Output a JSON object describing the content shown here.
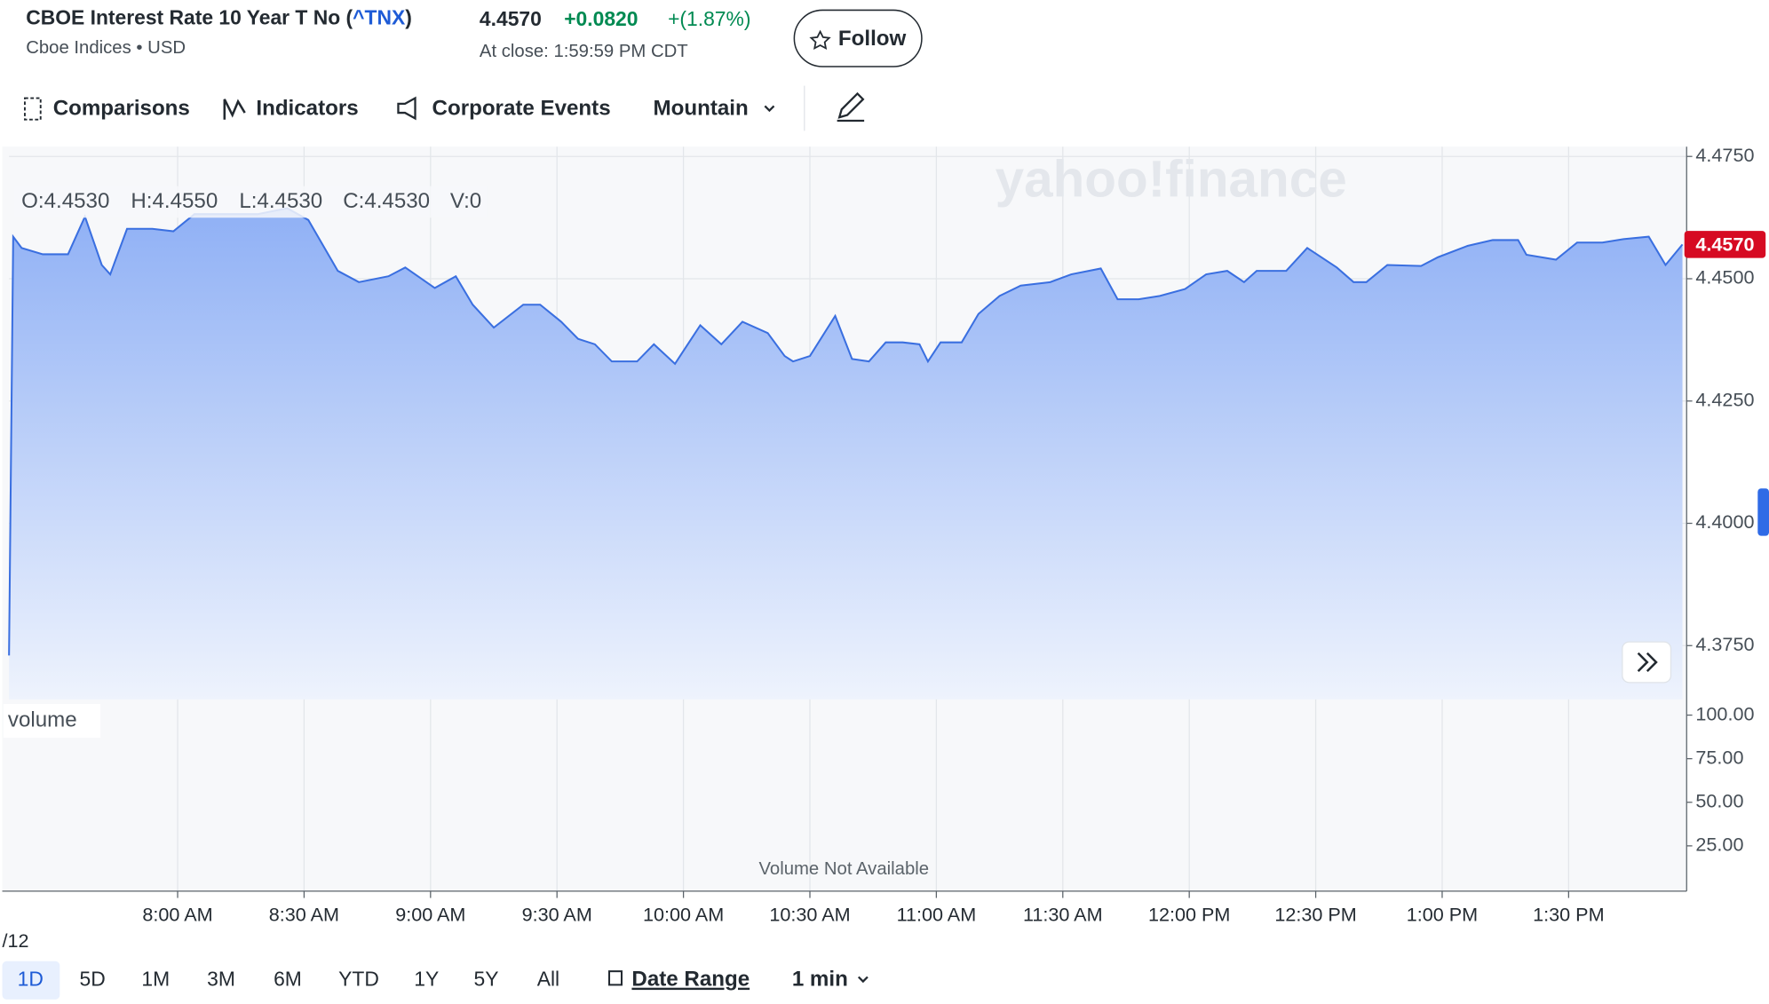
{
  "header": {
    "title_prefix": "CBOE Interest Rate 10 Year T No (",
    "symbol": "^TNX",
    "title_suffix": ")",
    "exchange": "Cboe Indices • USD",
    "price": "4.4570",
    "change": "+0.0820",
    "change_pct": "+(1.87%)",
    "close_time": "At close: 1:59:59 PM CDT",
    "follow": "Follow"
  },
  "toolbar": [
    "Comparisons",
    "Indicators",
    "Corporate Events",
    "Mountain"
  ],
  "ohlc": [
    "O:4.4530",
    "H:4.4550",
    "L:4.4530",
    "C:4.4530",
    "V:0"
  ],
  "watermark": "yahoo!finance",
  "volume_label": "volume",
  "volume_note": "Volume Not Available",
  "date_label": "/12",
  "ranges": [
    "1D",
    "5D",
    "1M",
    "3M",
    "6M",
    "YTD",
    "1Y",
    "5Y",
    "All"
  ],
  "date_range": "Date Range",
  "interval": "1 min",
  "chart_data": {
    "type": "line",
    "color": "#3a6fe0",
    "grid": true,
    "price_tag": "4.4570",
    "x": [
      440,
      441,
      443,
      448,
      454,
      458,
      462,
      464,
      468,
      474,
      479,
      484,
      491,
      499,
      506,
      511,
      518,
      523,
      530,
      534,
      541,
      546,
      550,
      555,
      562,
      566,
      571,
      575,
      579,
      583,
      589,
      593,
      598,
      604,
      609,
      614,
      620,
      624,
      626,
      630,
      636,
      640,
      644,
      648,
      652,
      656,
      658,
      661,
      666,
      670,
      675,
      680,
      687,
      692,
      699,
      703,
      708,
      713,
      719,
      724,
      729,
      733,
      736,
      743,
      748,
      755,
      759,
      762,
      767,
      775,
      779,
      786,
      792,
      798,
      800,
      807,
      812,
      818,
      823,
      829,
      833,
      837
    ],
    "series": [
      {
        "name": "^TNX",
        "values": [
          4.373,
          4.4586,
          4.4563,
          4.455,
          4.455,
          4.4627,
          4.4528,
          4.4509,
          4.4602,
          4.4602,
          4.4597,
          4.4632,
          4.4632,
          4.4632,
          4.4644,
          4.462,
          4.4516,
          4.4493,
          4.4505,
          4.4523,
          4.4481,
          4.4505,
          4.4447,
          4.44,
          4.4447,
          4.4447,
          4.4412,
          4.4377,
          4.4366,
          4.4331,
          4.4331,
          4.4366,
          4.4326,
          4.4405,
          4.4366,
          4.4412,
          4.4389,
          4.4342,
          4.4331,
          4.4342,
          4.4424,
          4.4336,
          4.4331,
          4.437,
          4.437,
          4.4366,
          4.4331,
          4.437,
          4.437,
          4.4428,
          4.4465,
          4.4486,
          4.4493,
          4.4509,
          4.4521,
          4.4458,
          4.4458,
          4.4465,
          4.4479,
          4.4509,
          4.4516,
          4.4493,
          4.4516,
          4.4516,
          4.4563,
          4.4523,
          4.4493,
          4.4493,
          4.4528,
          4.4526,
          4.4544,
          4.4567,
          4.4579,
          4.4579,
          4.4549,
          4.4539,
          4.4574,
          4.4574,
          4.4581,
          4.4586,
          4.4528,
          4.457
        ]
      }
    ],
    "xlim": [
      440,
      838
    ],
    "xticks": [
      {
        "value": 480,
        "label": "8:00 AM"
      },
      {
        "value": 510,
        "label": "8:30 AM"
      },
      {
        "value": 540,
        "label": "9:00 AM"
      },
      {
        "value": 570,
        "label": "9:30 AM"
      },
      {
        "value": 600,
        "label": "10:00 AM"
      },
      {
        "value": 630,
        "label": "10:30 AM"
      },
      {
        "value": 660,
        "label": "11:00 AM"
      },
      {
        "value": 690,
        "label": "11:30 AM"
      },
      {
        "value": 720,
        "label": "12:00 PM"
      },
      {
        "value": 750,
        "label": "12:30 PM"
      },
      {
        "value": 780,
        "label": "1:00 PM"
      },
      {
        "value": 810,
        "label": "1:30 PM"
      }
    ],
    "ylim": [
      4.364,
      4.477
    ],
    "yticks": [
      {
        "value": 4.475,
        "label": "4.4750"
      },
      {
        "value": 4.45,
        "label": "4.4500"
      },
      {
        "value": 4.425,
        "label": "4.4250"
      },
      {
        "value": 4.4,
        "label": "4.4000"
      },
      {
        "value": 4.375,
        "label": "4.3750"
      }
    ],
    "y2lim": [
      -1,
      109
    ],
    "y2ticks": [
      {
        "value": 100,
        "label": "100.00"
      },
      {
        "value": 75,
        "label": "75.00"
      },
      {
        "value": 50,
        "label": "50.00"
      },
      {
        "value": 25,
        "label": "25.00"
      }
    ]
  }
}
